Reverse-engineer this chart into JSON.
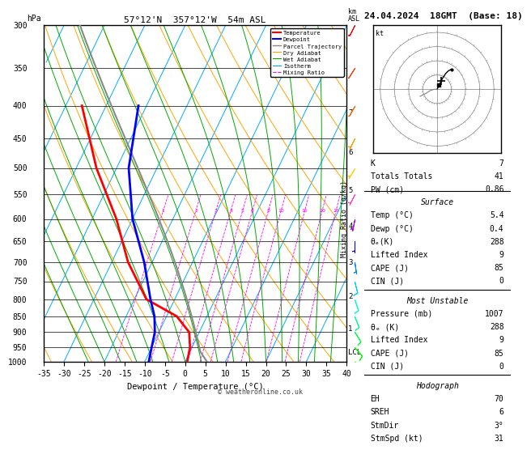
{
  "title_left": "57°12'N  357°12'W  54m ASL",
  "title_right": "24.04.2024  18GMT  (Base: 18)",
  "xlabel": "Dewpoint / Temperature (°C)",
  "temp_color": "#ff0000",
  "dewp_color": "#0000ff",
  "parcel_color": "#888888",
  "dry_adiabat_color": "#ffa500",
  "wet_adiabat_color": "#00aa00",
  "isotherm_color": "#00aaff",
  "mixing_ratio_color": "#ff00ff",
  "background_color": "#ffffff",
  "pressure_levels": [
    300,
    350,
    400,
    450,
    500,
    550,
    600,
    650,
    700,
    750,
    800,
    850,
    900,
    950,
    1000
  ],
  "km_labels": [
    7,
    6,
    5,
    4,
    3,
    2,
    1,
    "LCL"
  ],
  "km_pressures": [
    410,
    472,
    540,
    615,
    700,
    790,
    888,
    965
  ],
  "temp_profile_T": [
    0.5,
    -0.5,
    -2.5,
    -7.5,
    -17,
    -26,
    -34,
    -45,
    -56
  ],
  "temp_profile_P": [
    1000,
    950,
    900,
    850,
    800,
    700,
    600,
    500,
    400
  ],
  "dewp_profile_T": [
    -9,
    -10,
    -11,
    -13,
    -16,
    -22,
    -30,
    -37,
    -42
  ],
  "dewp_profile_P": [
    1000,
    950,
    900,
    850,
    800,
    700,
    600,
    500,
    400
  ],
  "mixing_ratio_values": [
    1,
    2,
    3,
    4,
    5,
    6,
    8,
    10,
    15,
    20,
    25
  ],
  "surface_temp": 5.4,
  "surface_dewp": 0.4,
  "lcl_pressure": 965,
  "T_RANGE": [
    -35,
    40
  ],
  "P_MIN": 300,
  "P_MAX": 1000,
  "skew_factor": 40.0,
  "wind_barb_data": [
    [
      300,
      5,
      10
    ],
    [
      350,
      5,
      8
    ],
    [
      400,
      4,
      7
    ],
    [
      450,
      3,
      6
    ],
    [
      500,
      3,
      5
    ],
    [
      550,
      2,
      4
    ],
    [
      600,
      1,
      5
    ],
    [
      650,
      0,
      6
    ],
    [
      700,
      -1,
      7
    ],
    [
      750,
      -2,
      8
    ],
    [
      800,
      -3,
      9
    ],
    [
      850,
      -4,
      10
    ],
    [
      900,
      -5,
      8
    ],
    [
      950,
      -6,
      7
    ],
    [
      1000,
      -7,
      6
    ]
  ],
  "barb_colors": [
    "#ff0000",
    "#ff3300",
    "#ff6600",
    "#ff9900",
    "#ffcc00",
    "#ff44cc",
    "#aa00ff",
    "#0000ff",
    "#0088ff",
    "#00ccff",
    "#00ffcc",
    "#00ff88",
    "#00ff44",
    "#00ff00",
    "#44ff00"
  ]
}
